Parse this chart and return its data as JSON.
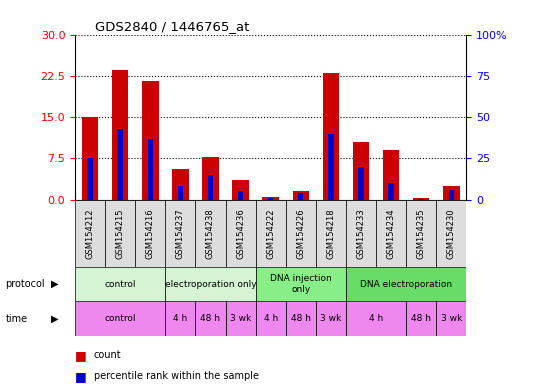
{
  "title": "GDS2840 / 1446765_at",
  "samples": [
    "GSM154212",
    "GSM154215",
    "GSM154216",
    "GSM154237",
    "GSM154238",
    "GSM154236",
    "GSM154222",
    "GSM154226",
    "GSM154218",
    "GSM154233",
    "GSM154234",
    "GSM154235",
    "GSM154230"
  ],
  "count_values": [
    15.0,
    23.5,
    21.5,
    5.5,
    7.8,
    3.5,
    0.5,
    1.5,
    23.0,
    10.5,
    9.0,
    0.3,
    2.5
  ],
  "percentile_values": [
    25.0,
    43.0,
    37.0,
    8.0,
    15.0,
    5.0,
    1.0,
    4.0,
    40.0,
    20.0,
    10.0,
    0.5,
    6.0
  ],
  "ylim_left": [
    0,
    30
  ],
  "ylim_right": [
    0,
    100
  ],
  "yticks_left": [
    0,
    7.5,
    15,
    22.5,
    30
  ],
  "yticks_right": [
    0,
    25,
    50,
    75,
    100
  ],
  "protocol_groups": [
    {
      "label": "control",
      "start": 0,
      "end": 3,
      "color": "#d4f5d4"
    },
    {
      "label": "electroporation only",
      "start": 3,
      "end": 6,
      "color": "#d4f5d4"
    },
    {
      "label": "DNA injection\nonly",
      "start": 6,
      "end": 9,
      "color": "#88ee88"
    },
    {
      "label": "DNA electroporation",
      "start": 9,
      "end": 13,
      "color": "#66dd66"
    }
  ],
  "time_groups": [
    {
      "label": "control",
      "start": 0,
      "end": 3
    },
    {
      "label": "4 h",
      "start": 3,
      "end": 4
    },
    {
      "label": "48 h",
      "start": 4,
      "end": 5
    },
    {
      "label": "3 wk",
      "start": 5,
      "end": 6
    },
    {
      "label": "4 h",
      "start": 6,
      "end": 7
    },
    {
      "label": "48 h",
      "start": 7,
      "end": 8
    },
    {
      "label": "3 wk",
      "start": 8,
      "end": 9
    },
    {
      "label": "4 h",
      "start": 9,
      "end": 11
    },
    {
      "label": "48 h",
      "start": 11,
      "end": 12
    },
    {
      "label": "3 wk",
      "start": 12,
      "end": 13
    }
  ],
  "time_color": "#ee88ee",
  "bar_color_red": "#cc0000",
  "bar_color_blue": "#0000cc",
  "bg_color": "#ffffff",
  "sample_bg_color": "#dddddd",
  "bar_width": 0.55,
  "blue_bar_width": 0.18
}
